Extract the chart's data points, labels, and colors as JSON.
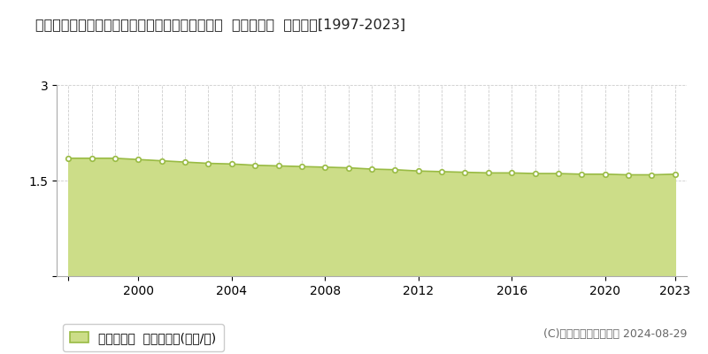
{
  "title": "福島県耶麻郡磐梯町大字大谷字寺ノ前４６１番外  基準地価格  地価推移[1997-2023]",
  "years": [
    1997,
    1998,
    1999,
    2000,
    2001,
    2002,
    2003,
    2004,
    2005,
    2006,
    2007,
    2008,
    2009,
    2010,
    2011,
    2012,
    2013,
    2014,
    2015,
    2016,
    2017,
    2018,
    2019,
    2020,
    2021,
    2022,
    2023
  ],
  "values": [
    1.85,
    1.85,
    1.85,
    1.83,
    1.81,
    1.79,
    1.77,
    1.76,
    1.74,
    1.73,
    1.72,
    1.71,
    1.7,
    1.68,
    1.67,
    1.65,
    1.64,
    1.63,
    1.62,
    1.62,
    1.61,
    1.61,
    1.6,
    1.6,
    1.59,
    1.59,
    1.6
  ],
  "line_color": "#99bb44",
  "fill_color": "#ccdd88",
  "marker_color": "#ffffff",
  "marker_edge_color": "#99bb44",
  "ylim": [
    0,
    3
  ],
  "yticks": [
    0,
    1.5,
    3
  ],
  "xtick_positions": [
    1997,
    2000,
    2004,
    2008,
    2012,
    2016,
    2020,
    2023
  ],
  "xtick_labels": [
    "",
    "2000",
    "2004",
    "2008",
    "2012",
    "2016",
    "2020",
    "2023"
  ],
  "grid_color": "#cccccc",
  "background_color": "#ffffff",
  "legend_label": "基準地価格  平均坪単価(万円/坪)",
  "copyright_text": "(C)土地価格ドットコム 2024-08-29",
  "title_fontsize": 11.5,
  "tick_fontsize": 10,
  "legend_fontsize": 10,
  "copyright_fontsize": 9,
  "xlim_left": 1996.5,
  "xlim_right": 2023.5
}
